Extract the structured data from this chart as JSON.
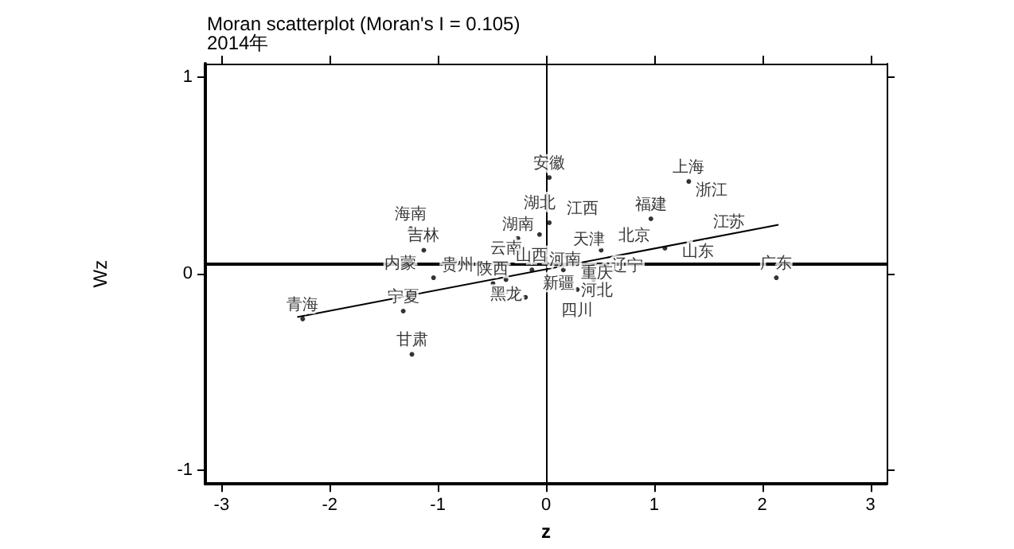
{
  "chart_data": {
    "type": "scatter",
    "title": "Moran scatterplot (Moran's I = 0.105)",
    "subtitle": "2014年",
    "xlabel": "z",
    "ylabel": "Wz",
    "xlim": [
      -3.15,
      3.15
    ],
    "ylim": [
      -1.07,
      1.07
    ],
    "xticks": [
      -3,
      -2,
      -1,
      0,
      1,
      2,
      3
    ],
    "yticks": [
      -1,
      0,
      1
    ],
    "grid": false,
    "series": [
      {
        "type": "scatter",
        "marker": "circle",
        "color": "#000000",
        "x": [
          -1.25,
          -1.13,
          -0.82,
          -1.04,
          -2.25,
          -1.32,
          -1.24,
          -0.49,
          -0.37,
          -0.37,
          -0.19,
          -0.26,
          -0.06,
          0.03,
          0.03,
          0.4,
          0.51,
          0.18,
          -0.13,
          0.16,
          0.44,
          0.47,
          0.29,
          2.13,
          1.32,
          1.53,
          0.97,
          1.69,
          1.1
        ],
        "values": [
          0.23,
          0.12,
          0.06,
          -0.02,
          -0.23,
          -0.19,
          -0.41,
          -0.05,
          -0.03,
          -0.09,
          -0.12,
          0.18,
          0.2,
          0.26,
          0.49,
          0.19,
          0.12,
          0.09,
          0.02,
          0.02,
          -0.03,
          -0.07,
          -0.08,
          -0.02,
          0.47,
          0.44,
          0.28,
          0.28,
          0.13
        ],
        "value_labels": [
          "海南",
          "吉林",
          "贵州",
          "内蒙",
          "青海",
          "宁夏",
          "甘肃",
          "陕西",
          "云南",
          "黑龙",
          "新疆",
          "湖南",
          "湖北",
          "江西",
          "安徽",
          "天津",
          "北京",
          "河南",
          "山西",
          "河北",
          "辽宁",
          "重庆",
          "四川",
          "广东",
          "上海",
          "浙江",
          "福建",
          "江苏",
          "山东"
        ]
      },
      {
        "type": "line",
        "marker": "none",
        "color": "#000000",
        "x": [
          -2.3,
          2.15
        ],
        "values": [
          -0.22,
          0.25
        ]
      }
    ],
    "ref_lines": [
      {
        "axis": "y",
        "value": 0.05,
        "color": "#000000"
      },
      {
        "axis": "x",
        "value": 0,
        "color": "#000000"
      }
    ]
  }
}
